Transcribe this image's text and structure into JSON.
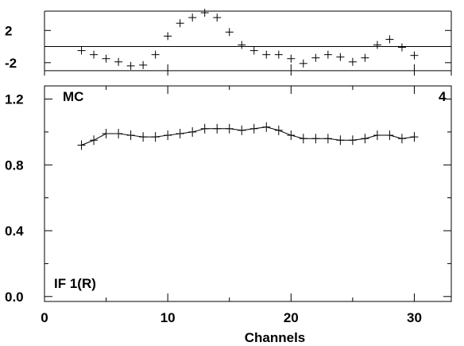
{
  "chart_data": [
    {
      "panel": "residual",
      "type": "scatter",
      "yticks": [
        2,
        -2
      ],
      "ylim": [
        -3.6,
        4.4
      ],
      "hlines": [
        -3.0,
        0.0
      ],
      "marker": "plus",
      "points": [
        {
          "x": 3,
          "y": -0.5
        },
        {
          "x": 4,
          "y": -1.0
        },
        {
          "x": 5,
          "y": -1.5
        },
        {
          "x": 6,
          "y": -1.9
        },
        {
          "x": 7,
          "y": -2.4
        },
        {
          "x": 8,
          "y": -2.3
        },
        {
          "x": 9,
          "y": -1.0
        },
        {
          "x": 10,
          "y": 1.3
        },
        {
          "x": 11,
          "y": 2.9
        },
        {
          "x": 12,
          "y": 3.6
        },
        {
          "x": 13,
          "y": 4.2
        },
        {
          "x": 14,
          "y": 3.6
        },
        {
          "x": 15,
          "y": 1.8
        },
        {
          "x": 16,
          "y": 0.2
        },
        {
          "x": 17,
          "y": -0.5
        },
        {
          "x": 18,
          "y": -1.0
        },
        {
          "x": 19,
          "y": -1.0
        },
        {
          "x": 20,
          "y": -1.5
        },
        {
          "x": 21,
          "y": -2.1
        },
        {
          "x": 22,
          "y": -1.4
        },
        {
          "x": 23,
          "y": -1.0
        },
        {
          "x": 24,
          "y": -1.3
        },
        {
          "x": 25,
          "y": -1.9
        },
        {
          "x": 26,
          "y": -1.4
        },
        {
          "x": 27,
          "y": 0.2
        },
        {
          "x": 28,
          "y": 0.9
        },
        {
          "x": 29,
          "y": -0.1
        },
        {
          "x": 30,
          "y": -1.1
        }
      ],
      "error_bars": [
        {
          "x": 10,
          "lo": -3.6,
          "hi": -2.2
        },
        {
          "x": 20,
          "lo": -3.6,
          "hi": -2.2
        },
        {
          "x": 30,
          "lo": -3.6,
          "hi": -2.2
        }
      ]
    },
    {
      "panel": "main",
      "type": "line",
      "xlabel": "Channels",
      "xlim": [
        0,
        33
      ],
      "ylim": [
        -0.03,
        1.28
      ],
      "xticks": [
        0,
        10,
        20,
        30
      ],
      "yticks": [
        "0.0",
        "0.4",
        "0.8",
        "1.2"
      ],
      "label_left_top": "MC",
      "label_right_top": "4",
      "label_left_bottom": "IF 1(R)",
      "series": [
        {
          "marker": "plus",
          "x": [
            3,
            4,
            5,
            6,
            7,
            8,
            9,
            10,
            11,
            12,
            13,
            14,
            15,
            16,
            17,
            18,
            19,
            20,
            21,
            22,
            23,
            24,
            25,
            26,
            27,
            28,
            29,
            30
          ],
          "y": [
            0.92,
            0.95,
            0.99,
            0.99,
            0.98,
            0.97,
            0.97,
            0.98,
            0.99,
            1.0,
            1.02,
            1.02,
            1.02,
            1.01,
            1.02,
            1.03,
            1.01,
            0.98,
            0.96,
            0.96,
            0.96,
            0.95,
            0.95,
            0.96,
            0.98,
            0.98,
            0.96,
            0.97
          ]
        }
      ]
    }
  ]
}
